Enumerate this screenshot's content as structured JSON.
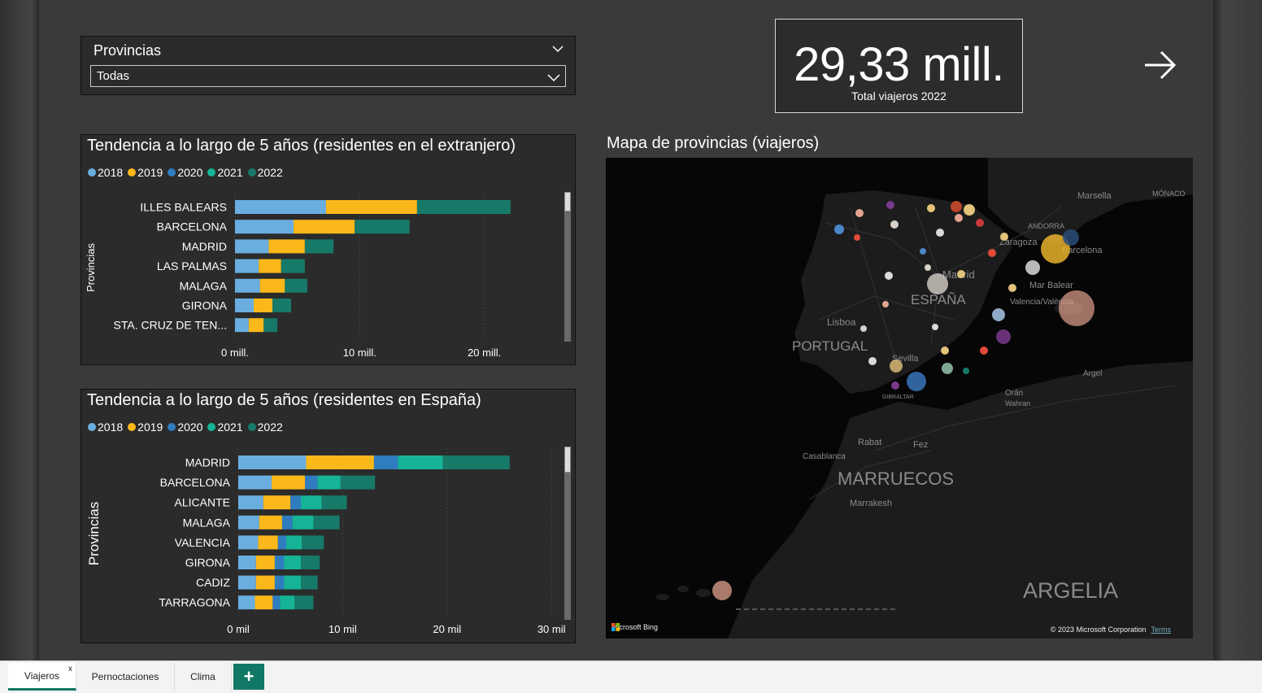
{
  "slicer": {
    "title": "Provincias",
    "selected": "Todas"
  },
  "kpi": {
    "value": "29,33 mill.",
    "label": "Total viajeros 2022"
  },
  "colors": {
    "2018": "#6aaee0",
    "2019": "#fbb81a",
    "2020": "#2f7dbf",
    "2021": "#16b497",
    "2022": "#177a68"
  },
  "chart1": {
    "title": "Tendencia a lo largo de 5 años (residentes en el extranjero)",
    "legend": [
      "2018",
      "2019",
      "2020",
      "2021",
      "2022"
    ],
    "axis_label": "Provincias",
    "ticks": [
      "0 mill.",
      "10 mill.",
      "20 mill."
    ]
  },
  "chart2": {
    "title": "Tendencia a lo largo de 5 años (residentes en España)",
    "legend": [
      "2018",
      "2019",
      "2020",
      "2021",
      "2022"
    ],
    "axis_label": "Provincias",
    "ticks": [
      "0 mil",
      "10 mil",
      "20 mil",
      "30 mil"
    ]
  },
  "chart_data": [
    {
      "type": "bar",
      "orientation": "horizontal",
      "stacked": true,
      "title": "Tendencia a lo largo de 5 años (residentes en el extranjero)",
      "ylabel": "Provincias",
      "xlim": [
        0,
        24
      ],
      "categories": [
        "ILLES BALEARS",
        "BARCELONA",
        "MADRID",
        "LAS PALMAS",
        "MALAGA",
        "GIRONA",
        "STA. CRUZ DE TEN..."
      ],
      "series": [
        {
          "name": "2018",
          "values": [
            7.3,
            4.7,
            2.7,
            1.9,
            2.0,
            1.5,
            1.1
          ]
        },
        {
          "name": "2019",
          "values": [
            7.3,
            4.9,
            2.9,
            1.8,
            2.0,
            1.5,
            1.2
          ]
        },
        {
          "name": "2020",
          "values": [
            0,
            0,
            0,
            0,
            0,
            0,
            0
          ]
        },
        {
          "name": "2021",
          "values": [
            0,
            0,
            0,
            0,
            0,
            0,
            0
          ]
        },
        {
          "name": "2022",
          "values": [
            7.5,
            4.4,
            2.3,
            1.9,
            1.8,
            1.5,
            1.1
          ]
        }
      ]
    },
    {
      "type": "bar",
      "orientation": "horizontal",
      "stacked": true,
      "title": "Tendencia a lo largo de 5 años (residentes en España)",
      "ylabel": "Provincias",
      "xlim": [
        0,
        31
      ],
      "categories": [
        "MADRID",
        "BARCELONA",
        "ALICANTE",
        "MALAGA",
        "VALENCIA",
        "GIRONA",
        "CADIZ",
        "TARRAGONA"
      ],
      "series": [
        {
          "name": "2018",
          "values": [
            6.5,
            3.2,
            2.4,
            2.0,
            1.9,
            1.7,
            1.7,
            1.6
          ]
        },
        {
          "name": "2019",
          "values": [
            6.5,
            3.2,
            2.6,
            2.2,
            1.9,
            1.8,
            1.8,
            1.7
          ]
        },
        {
          "name": "2020",
          "values": [
            2.3,
            1.2,
            1.0,
            1.0,
            0.8,
            0.9,
            0.9,
            0.7
          ]
        },
        {
          "name": "2021",
          "values": [
            4.3,
            2.2,
            2.0,
            2.0,
            1.5,
            1.6,
            1.6,
            1.4
          ]
        },
        {
          "name": "2022",
          "values": [
            6.4,
            3.3,
            2.4,
            2.5,
            2.1,
            1.8,
            1.6,
            1.8
          ]
        }
      ]
    }
  ],
  "map": {
    "title": "Mapa de provincias (viajeros)",
    "labels": {
      "portugal": "PORTUGAL",
      "espana": "ESPAÑA",
      "marruecos": "MARRUECOS",
      "argelia": "ARGELIA",
      "lisboa": "Lisboa",
      "madrid": "Madrid",
      "zaragoza": "Zaragoza",
      "barcelona": "Barcelona",
      "andorra": "ANDORRA",
      "marsella": "Marsella",
      "monaco": "MÓNACO",
      "mar_balear": "Mar Balear",
      "valencia": "Valencia/València",
      "sevilla": "Sevilla",
      "gibraltar": "GIBRALTAR",
      "oran": "Orán",
      "wahran": "Wahran",
      "argel": "Argel",
      "rabat": "Rabat",
      "fez": "Fez",
      "casablanca": "Casablanca",
      "marrakesh": "Marrakesh"
    },
    "bing": "Microsoft Bing",
    "copyright": "© 2023 Microsoft Corporation",
    "terms": "Terms"
  },
  "tabs": {
    "tab1": "Viajeros",
    "tab1_close": "x",
    "tab2": "Pernoctaciones",
    "tab3": "Clima",
    "add": "+"
  }
}
